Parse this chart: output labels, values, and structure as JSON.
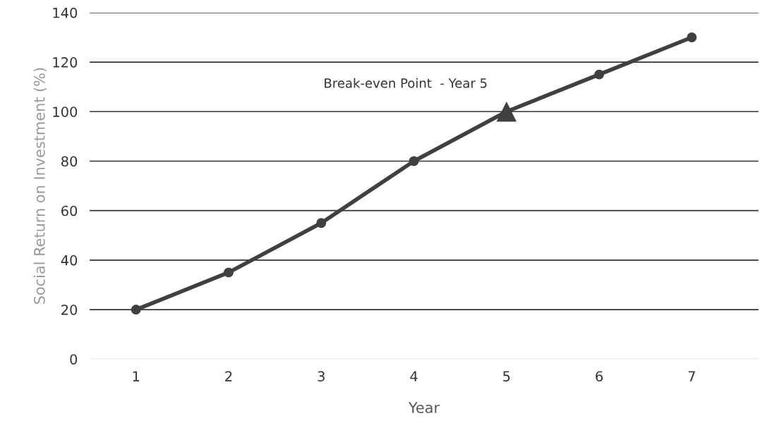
{
  "chart_data": {
    "type": "line",
    "xlabel": "Year",
    "ylabel": "Social Return on Investment (%)",
    "categories": [
      "1",
      "2",
      "3",
      "4",
      "5",
      "6",
      "7"
    ],
    "series": [
      {
        "color": "#404040",
        "values": [
          20,
          35,
          55,
          80,
          100,
          115,
          130
        ],
        "marker": "circle"
      },
      {
        "type": "scatter",
        "color": "#404040",
        "x": [
          "5"
        ],
        "values": [
          100
        ],
        "marker": "triangle"
      }
    ],
    "ylim": [
      0,
      140
    ],
    "yticks": [
      0,
      20,
      40,
      60,
      80,
      100,
      120,
      140
    ],
    "grid": "y",
    "line_style": "solid",
    "annotations": [
      {
        "text": "Break-even Point  - Year 5",
        "x": "5",
        "y": 100
      }
    ]
  }
}
